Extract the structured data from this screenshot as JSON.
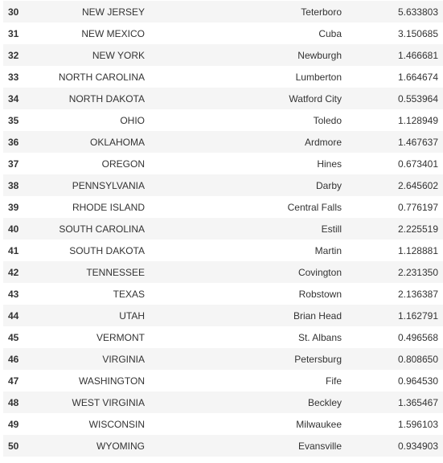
{
  "rows": [
    {
      "rank": "30",
      "state": "NEW JERSEY",
      "city": "Teterboro",
      "value": "5.633803"
    },
    {
      "rank": "31",
      "state": "NEW MEXICO",
      "city": "Cuba",
      "value": "3.150685"
    },
    {
      "rank": "32",
      "state": "NEW YORK",
      "city": "Newburgh",
      "value": "1.466681"
    },
    {
      "rank": "33",
      "state": "NORTH CAROLINA",
      "city": "Lumberton",
      "value": "1.664674"
    },
    {
      "rank": "34",
      "state": "NORTH DAKOTA",
      "city": "Watford City",
      "value": "0.553964"
    },
    {
      "rank": "35",
      "state": "OHIO",
      "city": "Toledo",
      "value": "1.128949"
    },
    {
      "rank": "36",
      "state": "OKLAHOMA",
      "city": "Ardmore",
      "value": "1.467637"
    },
    {
      "rank": "37",
      "state": "OREGON",
      "city": "Hines",
      "value": "0.673401"
    },
    {
      "rank": "38",
      "state": "PENNSYLVANIA",
      "city": "Darby",
      "value": "2.645602"
    },
    {
      "rank": "39",
      "state": "RHODE ISLAND",
      "city": "Central Falls",
      "value": "0.776197"
    },
    {
      "rank": "40",
      "state": "SOUTH CAROLINA",
      "city": "Estill",
      "value": "2.225519"
    },
    {
      "rank": "41",
      "state": "SOUTH DAKOTA",
      "city": "Martin",
      "value": "1.128881"
    },
    {
      "rank": "42",
      "state": "TENNESSEE",
      "city": "Covington",
      "value": "2.231350"
    },
    {
      "rank": "43",
      "state": "TEXAS",
      "city": "Robstown",
      "value": "2.136387"
    },
    {
      "rank": "44",
      "state": "UTAH",
      "city": "Brian Head",
      "value": "1.162791"
    },
    {
      "rank": "45",
      "state": "VERMONT",
      "city": "St. Albans",
      "value": "0.496568"
    },
    {
      "rank": "46",
      "state": "VIRGINIA",
      "city": "Petersburg",
      "value": "0.808650"
    },
    {
      "rank": "47",
      "state": "WASHINGTON",
      "city": "Fife",
      "value": "0.964530"
    },
    {
      "rank": "48",
      "state": "WEST VIRGINIA",
      "city": "Beckley",
      "value": "1.365467"
    },
    {
      "rank": "49",
      "state": "WISCONSIN",
      "city": "Milwaukee",
      "value": "1.596103"
    },
    {
      "rank": "50",
      "state": "WYOMING",
      "city": "Evansville",
      "value": "0.934903"
    }
  ],
  "colors": {
    "stripe": "#f5f5f5",
    "background": "#ffffff",
    "text": "#333333"
  }
}
